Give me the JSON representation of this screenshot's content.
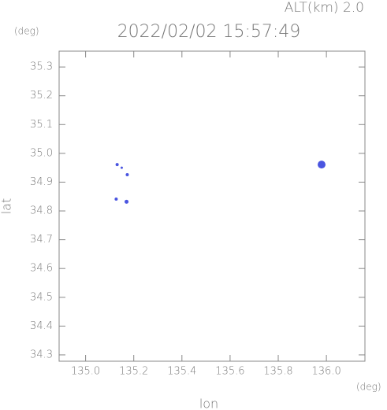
{
  "chart_data": {
    "type": "scatter",
    "title": "2022/02/02 15:57:49",
    "annotation": "ALT(km)  2.0",
    "y_unit": "(deg)",
    "x_unit": "(deg)",
    "x_label": "lon",
    "y_label": "lat",
    "color": "#4a55e0",
    "x": [
      135.131,
      135.15,
      135.173,
      135.127,
      135.17,
      135.98
    ],
    "values": [
      34.961,
      34.95,
      34.926,
      34.841,
      34.832,
      34.961
    ],
    "sizes": [
      2,
      1.5,
      2,
      2,
      2.5,
      5
    ],
    "xlim": [
      134.89,
      136.16
    ],
    "ylim": [
      34.278,
      35.355
    ],
    "xticks": [
      {
        "value": 135,
        "label": "135.0"
      },
      135.2,
      135.4,
      135.6,
      135.8,
      {
        "value": 136,
        "label": "136.0"
      }
    ],
    "yticks": [
      34.3,
      34.4,
      34.5,
      34.6,
      34.7,
      34.8,
      34.9,
      {
        "value": 35,
        "label": "35.0"
      },
      35.1,
      35.2,
      35.3
    ]
  }
}
